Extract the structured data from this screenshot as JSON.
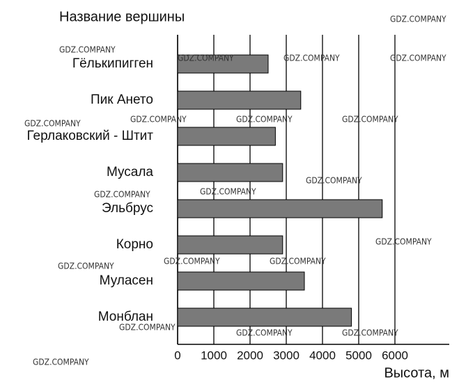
{
  "chart_data": {
    "type": "barh",
    "title": "Название вершины",
    "x_label": "Высота, м",
    "categories": [
      "Гёлькипигген",
      "Пик Ането",
      "Герлаковский - Штит",
      "Мусала",
      "Эльбрус",
      "Корно",
      "Муласен",
      "Монблан"
    ],
    "values": [
      2500,
      3400,
      2700,
      2900,
      5650,
      2900,
      3500,
      4800
    ],
    "color": "#7a7a7a",
    "xlim": [
      0,
      7500
    ],
    "xticks": [
      0,
      1000,
      2000,
      3000,
      4000,
      5000,
      6000
    ],
    "grid": true,
    "watermark": "GDZ.COMPANY"
  }
}
